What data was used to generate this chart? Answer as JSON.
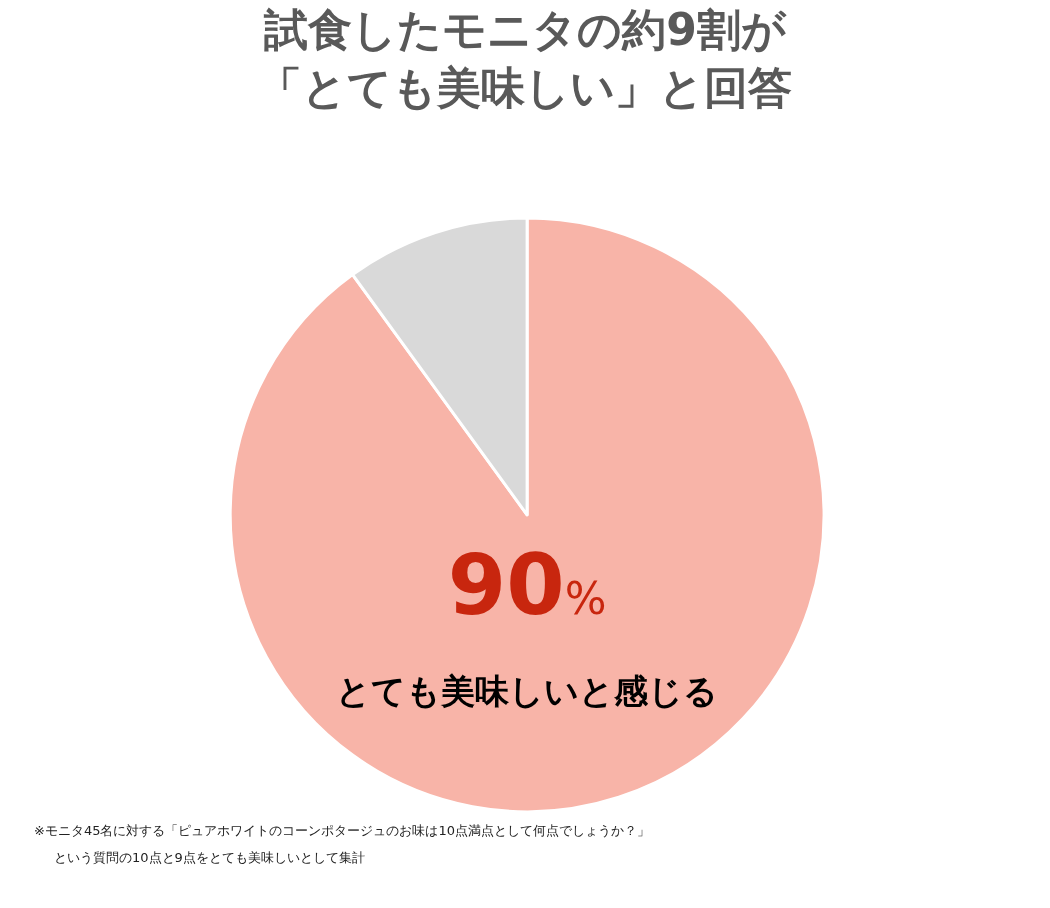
{
  "chart_data": {
    "type": "pie",
    "title": "試食したモニタの約9割が「とても美味しい」と回答",
    "categories": [
      "とても美味しいと感じる",
      null
    ],
    "values": [
      90,
      10
    ],
    "value_labels": [
      "90%",
      null
    ],
    "colors": [
      "#f8b4a8",
      "#d9d9d9"
    ],
    "legend": false,
    "annotations": [
      "※モニタ45名に対する「ピュアホワイトのコーンポタージュのお味は10点満点として何点でしょうか？」",
      "という質問の10点と9点をとても美味しいとして集計"
    ]
  }
}
